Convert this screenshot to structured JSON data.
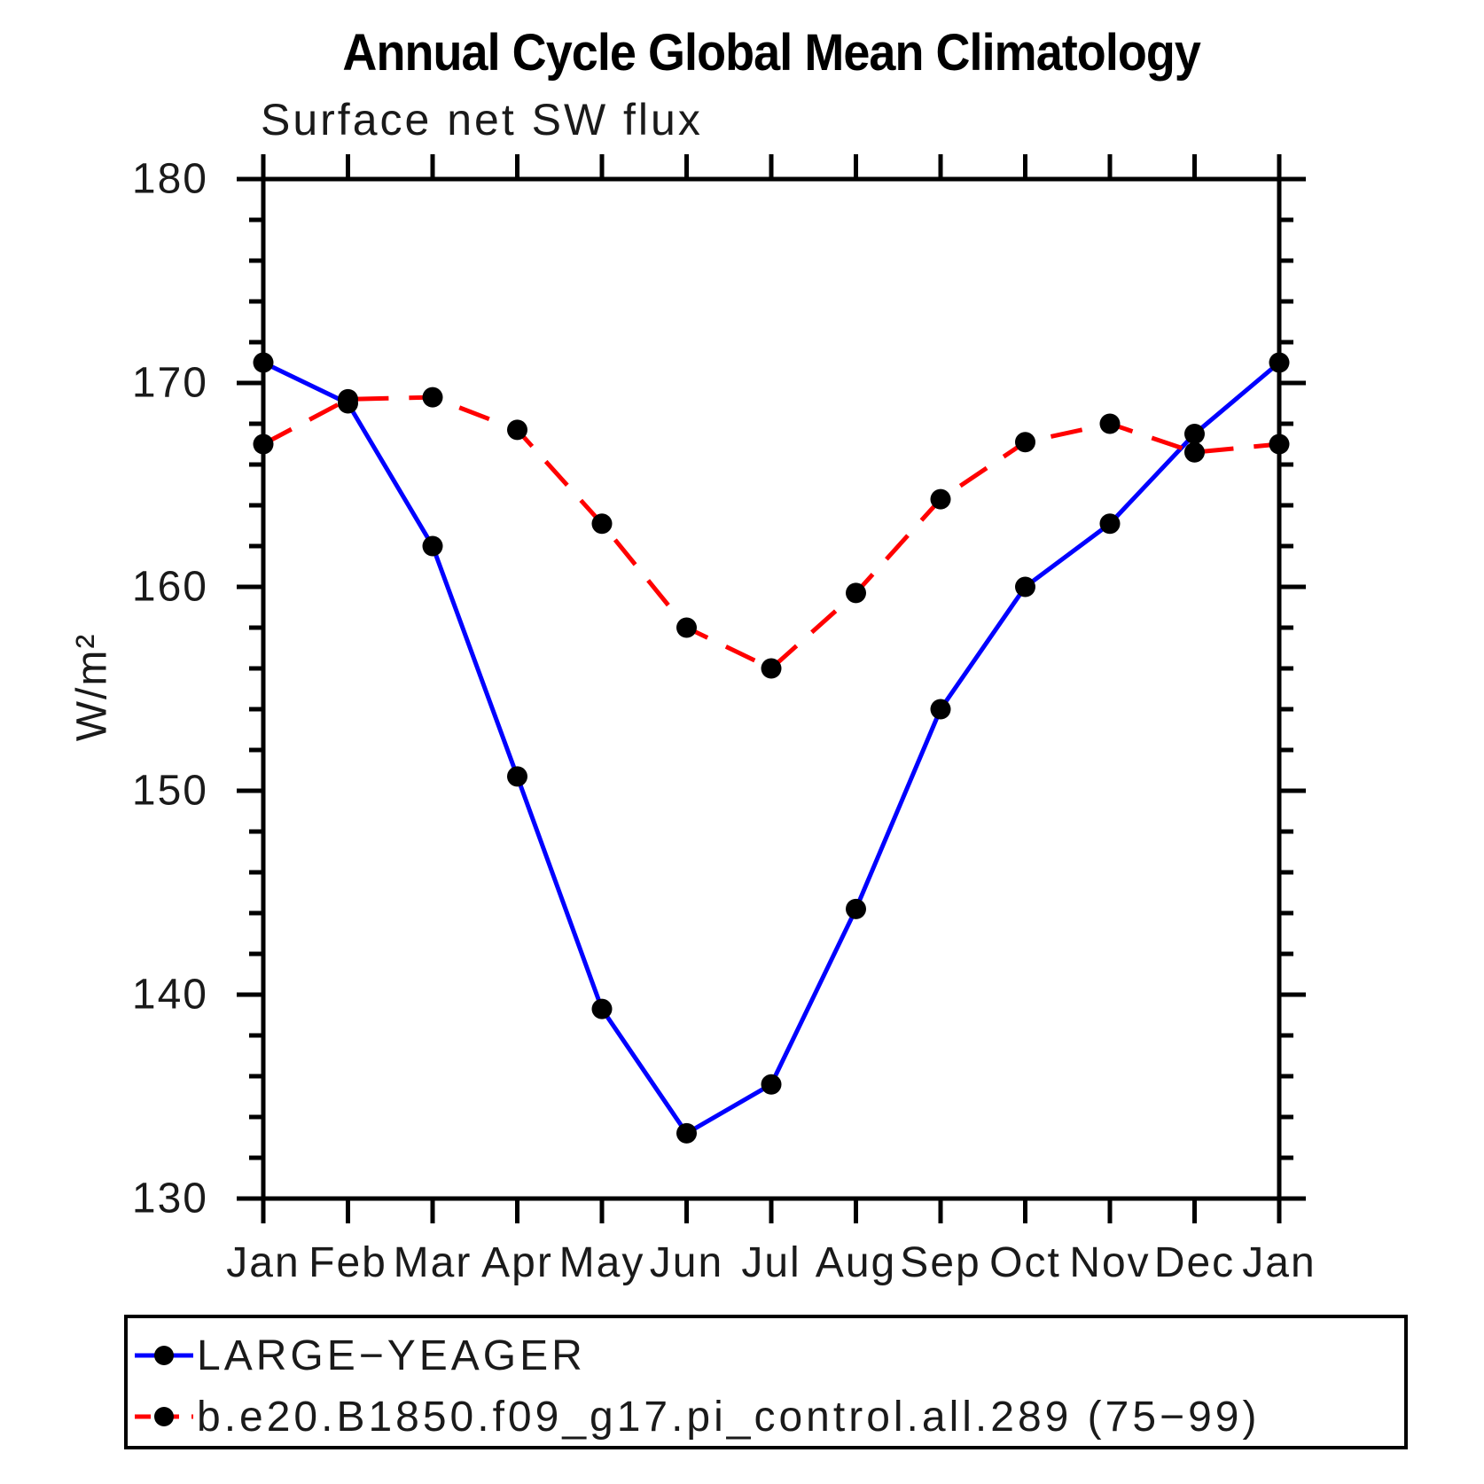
{
  "chart_data": {
    "type": "line",
    "title": "Annual Cycle Global Mean Climatology",
    "subtitle": "Surface net SW flux",
    "ylabel": "W/m²",
    "xlabel": "",
    "categories": [
      "Jan",
      "Feb",
      "Mar",
      "Apr",
      "May",
      "Jun",
      "Jul",
      "Aug",
      "Sep",
      "Oct",
      "Nov",
      "Dec",
      "Jan"
    ],
    "series": [
      {
        "name": "LARGE−YEAGER",
        "color": "#0000ff",
        "line_style": "solid",
        "values": [
          171.0,
          169.0,
          162.0,
          150.7,
          139.3,
          133.2,
          135.6,
          144.2,
          154.0,
          160.0,
          163.1,
          167.5,
          171.0
        ]
      },
      {
        "name": "b.e20.B1850.f09_g17.pi_control.all.289 (75−99)",
        "color": "#ff0000",
        "line_style": "dashed",
        "values": [
          167.0,
          169.2,
          169.3,
          167.7,
          163.1,
          158.0,
          156.0,
          159.7,
          164.3,
          167.1,
          168.0,
          166.6,
          167.0
        ]
      }
    ],
    "ylim": [
      130,
      180
    ],
    "yticks_major": [
      130,
      140,
      150,
      160,
      170,
      180
    ],
    "ytick_minor_step": 2,
    "marker_color": "#000000",
    "axis_color": "#000000",
    "grid": "off",
    "legend_position": "bottom-left-box"
  }
}
